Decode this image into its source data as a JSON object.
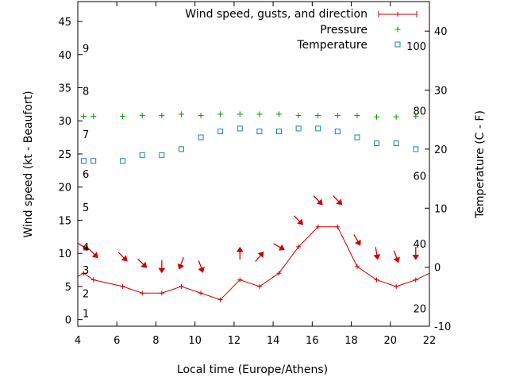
{
  "chart_data": {
    "type": "line",
    "xlabel": "Local time (Europe/Athens)",
    "ylabel": "Wind speed (kt - Beaufort)",
    "y2label": "Temperature (C - F)",
    "xlim": [
      4,
      22
    ],
    "ylim": [
      -1,
      48
    ],
    "y2lim": [
      -10,
      45
    ],
    "x_ticks": [
      4,
      6,
      8,
      10,
      12,
      14,
      16,
      18,
      20,
      22
    ],
    "y_ticks": [
      0,
      5,
      10,
      15,
      20,
      25,
      30,
      35,
      40,
      45
    ],
    "y2_ticks": [
      -10,
      0,
      10,
      20,
      30,
      40
    ],
    "beaufort_labels": [
      {
        "label": "1",
        "y": 1
      },
      {
        "label": "2",
        "y": 4
      },
      {
        "label": "3",
        "y": 7.5
      },
      {
        "label": "4",
        "y": 11
      },
      {
        "label": "5",
        "y": 17
      },
      {
        "label": "6",
        "y": 22
      },
      {
        "label": "7",
        "y": 28
      },
      {
        "label": "8",
        "y": 34.5
      },
      {
        "label": "9",
        "y": 41
      }
    ],
    "fahrenheit_labels": [
      {
        "label": "20",
        "y2": -7
      },
      {
        "label": "40",
        "y2": 4
      },
      {
        "label": "60",
        "y2": 15.5
      },
      {
        "label": "80",
        "y2": 26.5
      },
      {
        "label": "100",
        "y2": 37.5
      }
    ],
    "legend": [
      {
        "label": "Wind speed, gusts, and direction",
        "color": "#cc0000",
        "marker": "line-plus"
      },
      {
        "label": "Pressure",
        "color": "#009900",
        "marker": "plus"
      },
      {
        "label": "Temperature",
        "color": "#1a7fbf",
        "marker": "square"
      }
    ],
    "series": [
      {
        "name": "Wind speed, gusts, and direction",
        "color": "#cc0000",
        "x": [
          4,
          4.3,
          4.8,
          6.3,
          7.3,
          8.3,
          9.3,
          10.3,
          11.3,
          12.3,
          13.3,
          14.3,
          15.3,
          16.3,
          17.3,
          18.3,
          19.3,
          20.3,
          21.3,
          22
        ],
        "y": [
          6.5,
          7,
          6,
          5,
          4,
          4,
          5,
          4,
          3,
          6,
          5,
          7,
          11,
          14,
          14,
          8,
          6,
          5,
          6,
          7
        ]
      },
      {
        "name": "Pressure",
        "color": "#009900",
        "x": [
          4.3,
          4.8,
          6.3,
          7.3,
          8.3,
          9.3,
          10.3,
          11.3,
          12.3,
          13.3,
          14.3,
          15.3,
          16.3,
          17.3,
          18.3,
          19.3,
          20.3,
          21.3
        ],
        "y": [
          30.7,
          30.7,
          30.7,
          30.8,
          30.8,
          31.0,
          30.8,
          31.0,
          31.0,
          31.0,
          31.0,
          30.8,
          30.8,
          30.8,
          30.8,
          30.6,
          30.6,
          30.7
        ]
      },
      {
        "name": "Temperature",
        "color": "#1a7fbf",
        "x": [
          4.3,
          4.8,
          6.3,
          7.3,
          8.3,
          9.3,
          10.3,
          11.3,
          12.3,
          13.3,
          14.3,
          15.3,
          16.3,
          17.3,
          18.3,
          19.3,
          20.3,
          21.3
        ],
        "y2": [
          18,
          18,
          18,
          19,
          19,
          20,
          22,
          23,
          23.5,
          23,
          23,
          23.5,
          23.5,
          23,
          22,
          21,
          21,
          20
        ]
      }
    ],
    "wind_direction_arrows": {
      "color": "#cc0000",
      "x": [
        4.3,
        4.8,
        6.3,
        7.3,
        8.3,
        9.3,
        10.3,
        12.3,
        13.3,
        14.3,
        15.3,
        16.3,
        17.3,
        18.3,
        19.3,
        20.3,
        21.3
      ],
      "y": [
        11,
        10,
        9.5,
        8.5,
        8,
        8.5,
        8,
        10,
        9.5,
        11,
        15,
        18,
        18,
        12,
        10,
        9.5,
        10
      ],
      "direction_deg": [
        300,
        315,
        315,
        315,
        0,
        20,
        340,
        180,
        220,
        300,
        315,
        315,
        315,
        330,
        350,
        340,
        0
      ]
    }
  }
}
